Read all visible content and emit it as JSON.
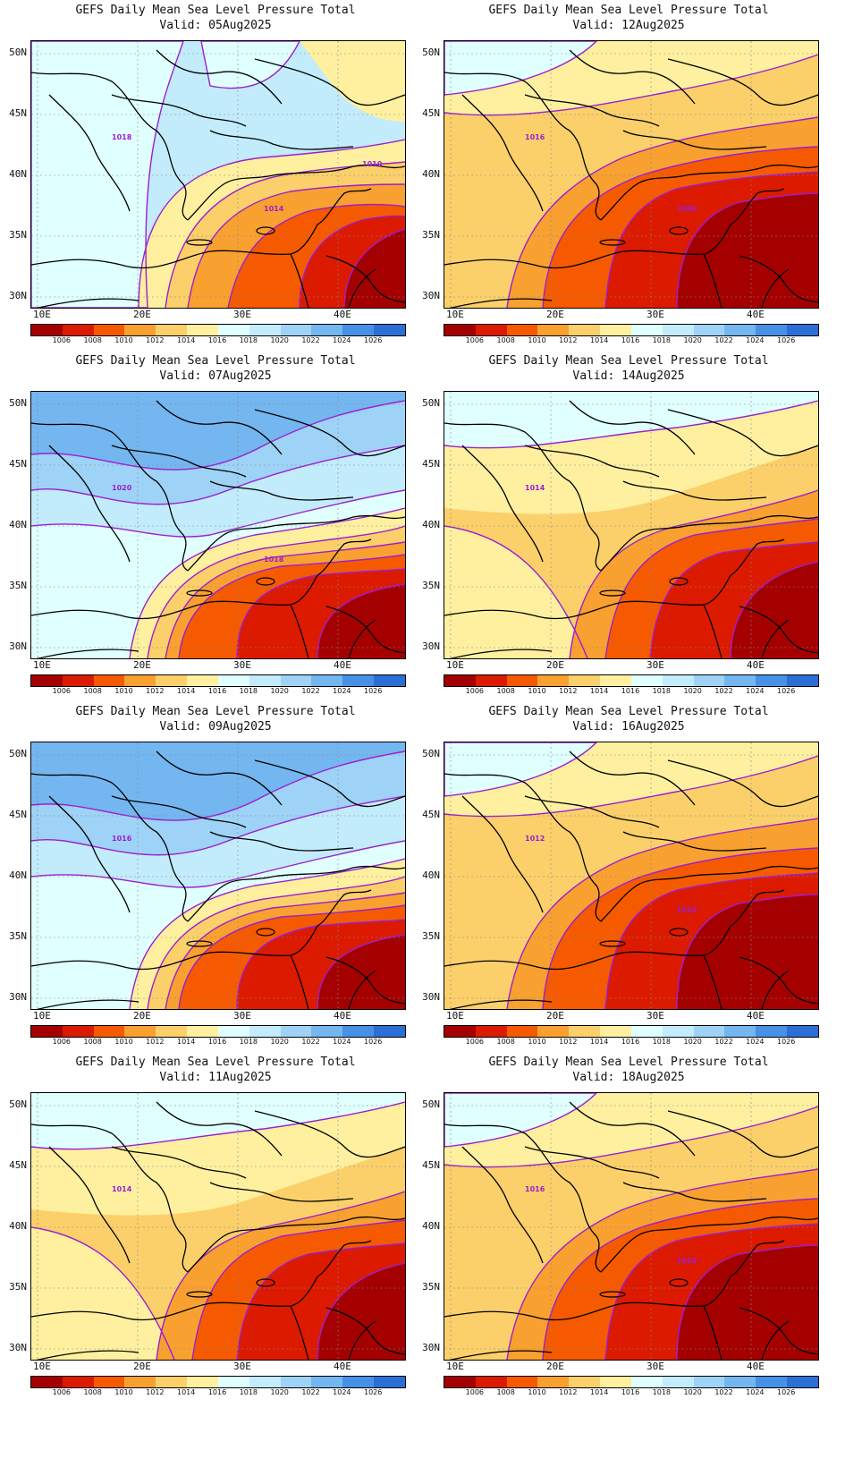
{
  "panels": [
    {
      "title": "GEFS Daily Mean Sea Level Pressure Total",
      "valid": "Valid: 05Aug2025",
      "labels": [
        "1018",
        "1014",
        "1010"
      ],
      "pattern": "high-west"
    },
    {
      "title": "GEFS Daily Mean Sea Level Pressure Total",
      "valid": "Valid: 12Aug2025",
      "labels": [
        "1016",
        "1006"
      ],
      "pattern": "low-strong"
    },
    {
      "title": "GEFS Daily Mean Sea Level Pressure Total",
      "valid": "Valid: 07Aug2025",
      "labels": [
        "1020",
        "1018"
      ],
      "pattern": "high-north"
    },
    {
      "title": "GEFS Daily Mean Sea Level Pressure Total",
      "valid": "Valid: 14Aug2025",
      "labels": [
        "1014"
      ],
      "pattern": "mid"
    },
    {
      "title": "GEFS Daily Mean Sea Level Pressure Total",
      "valid": "Valid: 09Aug2025",
      "labels": [
        "1016"
      ],
      "pattern": "high-north"
    },
    {
      "title": "GEFS Daily Mean Sea Level Pressure Total",
      "valid": "Valid: 16Aug2025",
      "labels": [
        "1012",
        "1010"
      ],
      "pattern": "low-strong"
    },
    {
      "title": "GEFS Daily Mean Sea Level Pressure Total",
      "valid": "Valid: 11Aug2025",
      "labels": [
        "1014"
      ],
      "pattern": "mid"
    },
    {
      "title": "GEFS Daily Mean Sea Level Pressure Total",
      "valid": "Valid: 18Aug2025",
      "labels": [
        "1016",
        "1010"
      ],
      "pattern": "low-strong"
    }
  ],
  "axes": {
    "lon_labels": [
      "10E",
      "20E",
      "30E",
      "40E"
    ],
    "lat_labels": [
      "50N",
      "45N",
      "40N",
      "35N",
      "30N"
    ]
  },
  "colorbar": {
    "labels": [
      "1006",
      "1008",
      "1010",
      "1012",
      "1014",
      "1016",
      "1018",
      "1020",
      "1022",
      "1024",
      "1026"
    ],
    "colors": [
      "#a50000",
      "#dc1a00",
      "#f55a00",
      "#f8a030",
      "#fbd06a",
      "#fff0a0",
      "#e0ffff",
      "#c2ecfb",
      "#9ed3f7",
      "#74b6f0",
      "#4691e6",
      "#2a6fd6"
    ]
  }
}
